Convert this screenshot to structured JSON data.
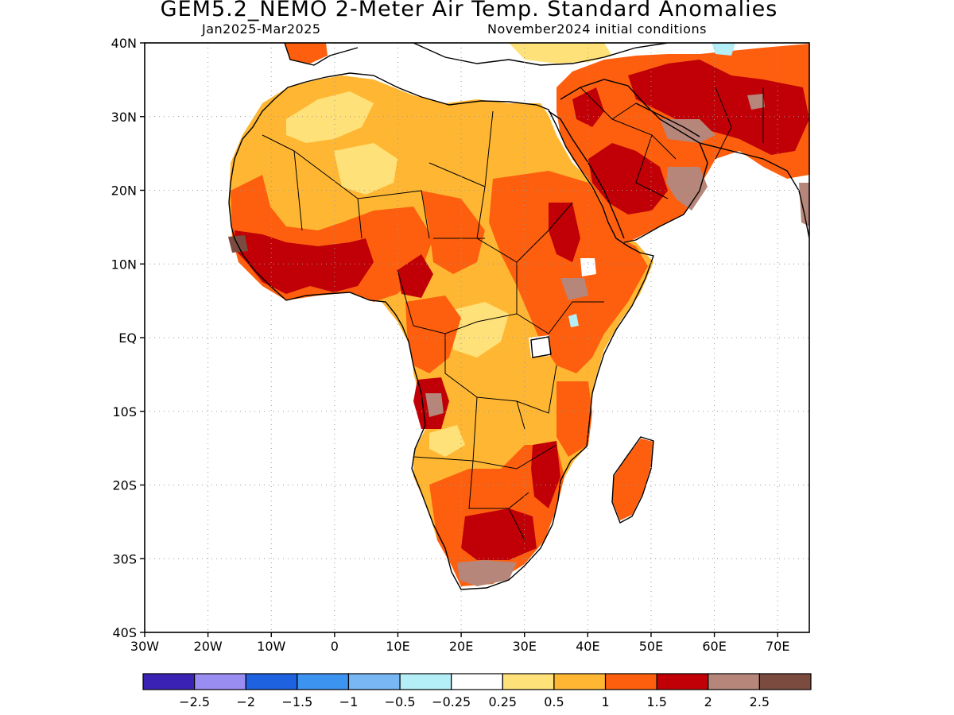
{
  "header": {
    "title": "GEM5.2_NEMO 2-Meter Air Temp. Standard Anomalies",
    "period": "Jan2025-Mar2025",
    "init": "November2024 initial conditions"
  },
  "map": {
    "region": "Africa",
    "lon_range": [
      -30,
      75
    ],
    "lat_range": [
      -40,
      40
    ],
    "gridlines": "dotted",
    "colorscale": "standard anomaly"
  },
  "axes": {
    "lat_ticks": [
      {
        "value": 40,
        "label": "40N"
      },
      {
        "value": 30,
        "label": "30N"
      },
      {
        "value": 20,
        "label": "20N"
      },
      {
        "value": 10,
        "label": "10N"
      },
      {
        "value": 0,
        "label": "EQ"
      },
      {
        "value": -10,
        "label": "10S"
      },
      {
        "value": -20,
        "label": "20S"
      },
      {
        "value": -30,
        "label": "30S"
      },
      {
        "value": -40,
        "label": "40S"
      }
    ],
    "lon_ticks": [
      {
        "value": -30,
        "label": "30W"
      },
      {
        "value": -20,
        "label": "20W"
      },
      {
        "value": -10,
        "label": "10W"
      },
      {
        "value": 0,
        "label": "0"
      },
      {
        "value": 10,
        "label": "10E"
      },
      {
        "value": 20,
        "label": "20E"
      },
      {
        "value": 30,
        "label": "30E"
      },
      {
        "value": 40,
        "label": "40E"
      },
      {
        "value": 50,
        "label": "50E"
      },
      {
        "value": 60,
        "label": "60E"
      },
      {
        "value": 70,
        "label": "70E"
      }
    ]
  },
  "legend": {
    "colors": [
      "#3a22b5",
      "#9a8df2",
      "#1e62e0",
      "#3d93f0",
      "#78b6f4",
      "#b4eef7",
      "#ffffff",
      "#ffe17a",
      "#ffb733",
      "#fd5f0e",
      "#c00006",
      "#b6867a",
      "#7a4b3e"
    ],
    "labels": [
      "-2.5",
      "-2",
      "-1.5",
      "-1",
      "-0.5",
      "-0.25",
      "0.25",
      "0.5",
      "1",
      "1.5",
      "2",
      "2.5"
    ]
  }
}
